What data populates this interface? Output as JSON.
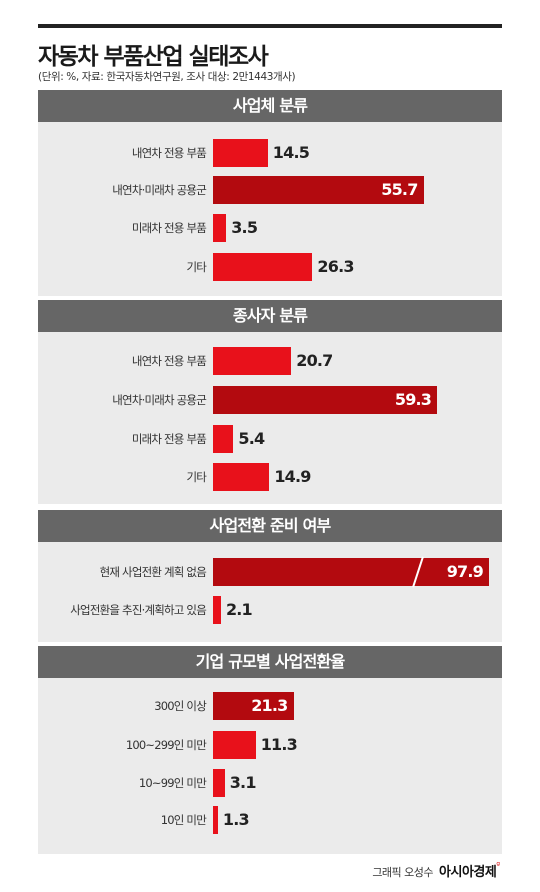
{
  "header": {
    "title": "자동차 부품산업 실태조사",
    "subtitle": "(단위: %, 자료: 한국자동차연구원, 조사 대상: 2만1443개사)"
  },
  "credit": {
    "author": "그래픽 오성수",
    "logo": "아시아경제"
  },
  "colors": {
    "bright_red": "#e8111b",
    "dark_red": "#b30a0f",
    "band_gray": "#666666",
    "panel_gray": "#ebebeb"
  },
  "chart_data": [
    {
      "type": "bar",
      "title": "사업체 분류",
      "categories": [
        "내연차 전용 부품",
        "내연차·미래차 공용군",
        "미래차 전용 부품",
        "기타"
      ],
      "values": [
        14.5,
        55.7,
        3.5,
        26.3
      ],
      "highlight": [
        false,
        true,
        false,
        false
      ]
    },
    {
      "type": "bar",
      "title": "종사자 분류",
      "categories": [
        "내연차 전용 부품",
        "내연차·미래차 공용군",
        "미래차 전용 부품",
        "기타"
      ],
      "values": [
        20.7,
        59.3,
        5.4,
        14.9
      ],
      "highlight": [
        false,
        true,
        false,
        false
      ]
    },
    {
      "type": "bar",
      "title": "사업전환 준비 여부",
      "categories": [
        "현재 사업전환 계획 없음",
        "사업전환을 추진·계획하고 있음"
      ],
      "values": [
        97.9,
        2.1
      ],
      "highlight": [
        true,
        false
      ],
      "broken_axis": true
    },
    {
      "type": "bar",
      "title": "기업 규모별 사업전환율",
      "categories": [
        "300인 이상",
        "100~299인 미만",
        "10~99인 미만",
        "10인 미만"
      ],
      "values": [
        21.3,
        11.3,
        3.1,
        1.3
      ],
      "highlight": [
        true,
        false,
        false,
        false
      ]
    }
  ]
}
